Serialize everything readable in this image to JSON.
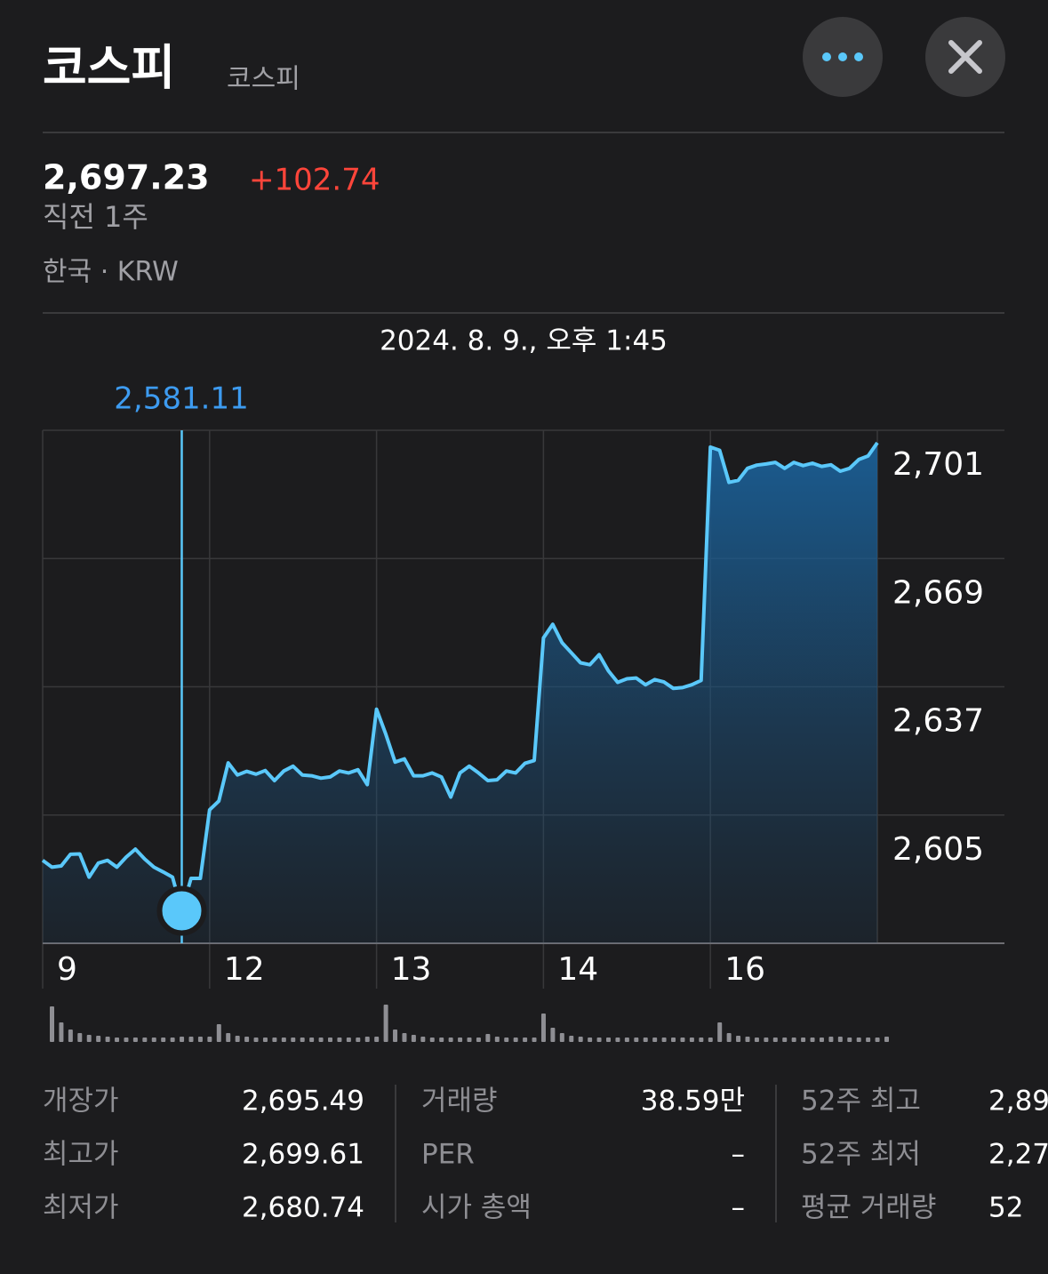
{
  "header": {
    "title": "코스피",
    "subtitle": "코스피",
    "price": "2,697.23",
    "change": "+102.74",
    "period": "직전 1주",
    "market": "한국 · KRW"
  },
  "chart_data": {
    "type": "line",
    "color": "#5ac8fa",
    "ylim": [
      2573,
      2701
    ],
    "yticks": [
      {
        "value": 2701,
        "label": "2,701"
      },
      {
        "value": 2669,
        "label": "2,669"
      },
      {
        "value": 2637,
        "label": "2,637"
      },
      {
        "value": 2605,
        "label": "2,605"
      }
    ],
    "grid": true,
    "days": [
      {
        "label": "9",
        "values": [
          2593.7,
          2592,
          2592.3,
          2595.2,
          2595.3,
          2589.5,
          2593,
          2593.7,
          2592,
          2594.5,
          2596.5,
          2594,
          2592,
          2590.8,
          2589.5,
          2581.11,
          2589.2,
          2589.2
        ],
        "volume": [
          40,
          22,
          14,
          10,
          8,
          7,
          6,
          5,
          5,
          5,
          5,
          5,
          5,
          5,
          6,
          6,
          6,
          6
        ]
      },
      {
        "label": "12",
        "values": [
          2606.3,
          2608.5,
          2618,
          2615,
          2615.9,
          2615.2,
          2616.1,
          2613.6,
          2616,
          2617.2,
          2615,
          2614.8,
          2614.2,
          2614.5,
          2616,
          2615.5,
          2616.3,
          2612.6
        ],
        "volume": [
          20,
          10,
          7,
          6,
          5,
          5,
          5,
          5,
          5,
          5,
          5,
          5,
          5,
          5,
          5,
          5,
          6,
          6
        ]
      },
      {
        "label": "13",
        "values": [
          2631.4,
          2625.2,
          2618.2,
          2619,
          2614.8,
          2614.8,
          2615.5,
          2614.5,
          2609.5,
          2615.5,
          2617.2,
          2615.5,
          2613.6,
          2613.8,
          2616,
          2615.5,
          2617.9,
          2618.6
        ],
        "volume": [
          42,
          14,
          10,
          8,
          6,
          5,
          5,
          5,
          5,
          5,
          5,
          9,
          6,
          5,
          5,
          5,
          5,
          32
        ]
      },
      {
        "label": "14",
        "values": [
          2649.2,
          2652.6,
          2648,
          2645.5,
          2643,
          2642.5,
          2645,
          2641,
          2638.1,
          2639,
          2639.2,
          2637.5,
          2638.8,
          2638.2,
          2636.6,
          2636.8,
          2637.5,
          2638.6
        ],
        "volume": [
          16,
          10,
          7,
          6,
          5,
          5,
          5,
          5,
          5,
          5,
          5,
          5,
          5,
          5,
          5,
          5,
          5,
          5
        ]
      },
      {
        "label": "16",
        "values": [
          2696.8,
          2696,
          2688,
          2688.5,
          2691.5,
          2692.3,
          2692.6,
          2693,
          2691.5,
          2693,
          2692.2,
          2692.8,
          2692,
          2692.4,
          2690.8,
          2691.5,
          2693.7,
          2694.6,
          2697.9
        ],
        "volume": [
          22,
          10,
          7,
          6,
          5,
          5,
          5,
          5,
          5,
          5,
          5,
          5,
          6,
          6,
          5,
          5,
          5,
          5,
          6
        ]
      }
    ],
    "selected": {
      "date": "2024. 8. 9., 오후 1:45",
      "day": 0,
      "index": 15,
      "value_label": "2,581.11"
    }
  },
  "stats": [
    [
      {
        "label": "개장가",
        "value": "2,695.49"
      },
      {
        "label": "최고가",
        "value": "2,699.61"
      },
      {
        "label": "최저가",
        "value": "2,680.74"
      }
    ],
    [
      {
        "label": "거래량",
        "value": "38.59만"
      },
      {
        "label": "PER",
        "value": "–"
      },
      {
        "label": "시가 총액",
        "value": "–"
      }
    ],
    [
      {
        "label": "52주 최고",
        "value": "2,89"
      },
      {
        "label": "52주 최저",
        "value": "2,27"
      },
      {
        "label": "평균 거래량",
        "value": "52"
      }
    ]
  ]
}
